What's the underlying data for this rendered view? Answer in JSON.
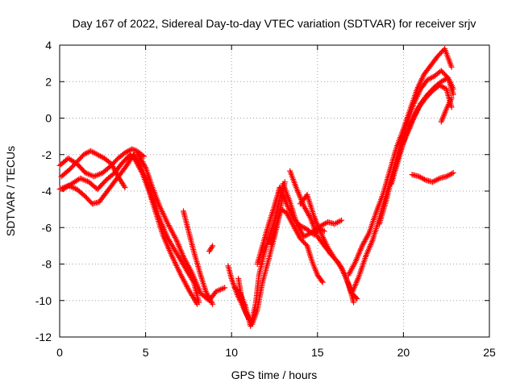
{
  "chart_data": {
    "type": "scatter",
    "title": "Day 167 of 2022, Sidereal Day-to-day VTEC variation (SDTVAR) for receiver srjv",
    "xlabel": "GPS time / hours",
    "ylabel": "SDTVAR / TECUs",
    "xlim": [
      0,
      25
    ],
    "ylim": [
      -12,
      4
    ],
    "xticks": [
      0,
      5,
      10,
      15,
      20,
      25
    ],
    "yticks": [
      -12,
      -10,
      -8,
      -6,
      -4,
      -2,
      0,
      2,
      4
    ],
    "xtick_labels": [
      "0",
      "5",
      "10",
      "15",
      "20",
      "25"
    ],
    "ytick_labels": [
      "-12",
      "-10",
      "-8",
      "-6",
      "-4",
      "-2",
      "0",
      "2",
      "4"
    ],
    "grid": true,
    "grid_style": "dotted",
    "marker": "+",
    "color": "#ff0000",
    "series": [
      {
        "values": [
          [
            0.1,
            -3.2
          ],
          [
            0.6,
            -2.8
          ],
          [
            1.0,
            -2.4
          ],
          [
            1.4,
            -2.0
          ],
          [
            1.8,
            -1.8
          ],
          [
            2.2,
            -2.0
          ],
          [
            2.6,
            -2.2
          ],
          [
            3.0,
            -2.5
          ],
          [
            3.4,
            -3.2
          ],
          [
            3.8,
            -3.8
          ]
        ]
      },
      {
        "values": [
          [
            0.0,
            -2.6
          ],
          [
            0.5,
            -2.2
          ],
          [
            1.0,
            -2.5
          ],
          [
            1.5,
            -3.0
          ],
          [
            2.0,
            -3.2
          ],
          [
            2.5,
            -3.0
          ],
          [
            3.0,
            -2.6
          ],
          [
            3.4,
            -2.2
          ],
          [
            3.8,
            -1.9
          ],
          [
            4.2,
            -1.7
          ],
          [
            4.5,
            -1.8
          ],
          [
            4.9,
            -2.1
          ]
        ]
      },
      {
        "values": [
          [
            0.0,
            -3.9
          ],
          [
            0.5,
            -3.7
          ],
          [
            1.0,
            -3.9
          ],
          [
            1.5,
            -4.3
          ],
          [
            1.9,
            -4.7
          ],
          [
            2.3,
            -4.6
          ],
          [
            2.7,
            -4.1
          ],
          [
            3.1,
            -3.6
          ],
          [
            3.5,
            -3.1
          ],
          [
            3.9,
            -2.6
          ],
          [
            4.3,
            -2.0
          ],
          [
            4.6,
            -2.4
          ],
          [
            5.0,
            -3.3
          ],
          [
            5.4,
            -4.4
          ],
          [
            5.8,
            -5.5
          ],
          [
            6.3,
            -6.6
          ],
          [
            6.8,
            -7.4
          ],
          [
            7.3,
            -8.2
          ],
          [
            7.8,
            -9.0
          ],
          [
            8.1,
            -10.1
          ]
        ]
      },
      {
        "values": [
          [
            0.2,
            -3.9
          ],
          [
            0.7,
            -3.6
          ],
          [
            1.2,
            -3.3
          ],
          [
            1.7,
            -3.5
          ],
          [
            2.2,
            -3.9
          ],
          [
            2.7,
            -3.4
          ],
          [
            3.2,
            -3.0
          ],
          [
            3.6,
            -2.5
          ],
          [
            4.1,
            -2.0
          ],
          [
            4.4,
            -2.3
          ],
          [
            4.8,
            -3.0
          ],
          [
            5.2,
            -4.0
          ],
          [
            5.6,
            -5.2
          ],
          [
            6.0,
            -6.4
          ],
          [
            6.5,
            -7.5
          ],
          [
            7.0,
            -8.5
          ],
          [
            7.5,
            -9.4
          ],
          [
            8.0,
            -10.2
          ]
        ]
      },
      {
        "values": [
          [
            4.5,
            -1.9
          ],
          [
            5.0,
            -2.7
          ],
          [
            5.4,
            -3.8
          ],
          [
            5.8,
            -4.8
          ],
          [
            6.3,
            -5.8
          ],
          [
            6.8,
            -6.7
          ],
          [
            7.2,
            -7.6
          ],
          [
            7.7,
            -8.5
          ],
          [
            8.2,
            -9.6
          ],
          [
            8.7,
            -10.0
          ],
          [
            9.1,
            -9.5
          ],
          [
            9.6,
            -9.3
          ]
        ]
      },
      {
        "values": [
          [
            7.2,
            -5.1
          ],
          [
            7.5,
            -6.2
          ],
          [
            7.8,
            -7.3
          ],
          [
            8.2,
            -8.6
          ],
          [
            8.5,
            -9.5
          ],
          [
            8.9,
            -10.2
          ]
        ]
      },
      {
        "values": [
          [
            8.7,
            -7.3
          ],
          [
            8.9,
            -7.0
          ]
        ]
      },
      {
        "values": [
          [
            9.8,
            -8.1
          ],
          [
            10.0,
            -8.8
          ],
          [
            10.3,
            -9.6
          ],
          [
            10.6,
            -10.2
          ],
          [
            10.9,
            -10.8
          ],
          [
            11.2,
            -11.3
          ],
          [
            11.5,
            -10.5
          ],
          [
            11.8,
            -9.0
          ],
          [
            12.2,
            -7.6
          ],
          [
            12.6,
            -6.1
          ],
          [
            12.9,
            -4.7
          ],
          [
            13.1,
            -3.5
          ]
        ]
      },
      {
        "values": [
          [
            10.2,
            -9.3
          ],
          [
            10.5,
            -9.6
          ],
          [
            10.8,
            -10.3
          ],
          [
            11.1,
            -11.4
          ],
          [
            11.4,
            -10.2
          ],
          [
            11.6,
            -8.6
          ],
          [
            11.9,
            -7.4
          ],
          [
            12.2,
            -6.5
          ],
          [
            12.5,
            -5.6
          ],
          [
            12.8,
            -4.5
          ],
          [
            13.0,
            -3.6
          ],
          [
            13.4,
            -4.6
          ],
          [
            13.8,
            -5.8
          ],
          [
            14.2,
            -6.5
          ],
          [
            14.6,
            -6.3
          ],
          [
            15.0,
            -6.0
          ],
          [
            15.4,
            -6.2
          ]
        ]
      },
      {
        "values": [
          [
            10.4,
            -8.8
          ],
          [
            10.6,
            -10.0
          ],
          [
            10.8,
            -10.6
          ],
          [
            11.0,
            -11.0
          ]
        ]
      },
      {
        "values": [
          [
            11.5,
            -8.0
          ],
          [
            11.8,
            -7.0
          ],
          [
            12.1,
            -6.0
          ],
          [
            12.5,
            -4.8
          ],
          [
            12.8,
            -3.8
          ],
          [
            13.2,
            -4.7
          ],
          [
            13.6,
            -5.5
          ],
          [
            14.0,
            -5.9
          ],
          [
            14.4,
            -6.1
          ],
          [
            14.8,
            -6.4
          ],
          [
            15.2,
            -5.9
          ],
          [
            15.6,
            -5.7
          ],
          [
            16.0,
            -5.8
          ],
          [
            16.4,
            -5.6
          ]
        ]
      },
      {
        "values": [
          [
            12.3,
            -6.9
          ],
          [
            12.6,
            -5.9
          ],
          [
            12.9,
            -5.0
          ],
          [
            13.2,
            -5.2
          ],
          [
            13.6,
            -5.9
          ],
          [
            14.0,
            -6.6
          ],
          [
            14.4,
            -7.0
          ],
          [
            14.7,
            -7.9
          ],
          [
            15.0,
            -8.6
          ],
          [
            15.3,
            -9.0
          ]
        ]
      },
      {
        "values": [
          [
            13.4,
            -2.9
          ],
          [
            13.8,
            -3.9
          ],
          [
            14.2,
            -4.8
          ],
          [
            14.6,
            -5.5
          ],
          [
            15.0,
            -6.5
          ],
          [
            15.4,
            -7.0
          ],
          [
            15.8,
            -7.5
          ],
          [
            16.2,
            -7.9
          ],
          [
            16.6,
            -8.6
          ],
          [
            17.0,
            -9.6
          ],
          [
            17.3,
            -9.9
          ]
        ]
      },
      {
        "values": [
          [
            14.0,
            -4.7
          ],
          [
            14.4,
            -4.2
          ],
          [
            14.8,
            -5.4
          ],
          [
            15.2,
            -6.3
          ],
          [
            15.6,
            -7.1
          ],
          [
            16.0,
            -7.7
          ],
          [
            16.4,
            -8.2
          ],
          [
            16.8,
            -9.1
          ],
          [
            17.1,
            -10.1
          ]
        ]
      },
      {
        "values": [
          [
            16.8,
            -8.6
          ],
          [
            17.2,
            -7.9
          ],
          [
            17.6,
            -7.0
          ],
          [
            18.0,
            -6.3
          ],
          [
            18.4,
            -5.2
          ],
          [
            18.8,
            -4.2
          ],
          [
            19.2,
            -2.9
          ],
          [
            19.6,
            -1.6
          ],
          [
            20.0,
            -0.6
          ],
          [
            20.4,
            0.5
          ],
          [
            20.8,
            1.6
          ],
          [
            21.2,
            2.4
          ],
          [
            21.6,
            2.9
          ],
          [
            22.0,
            3.4
          ],
          [
            22.4,
            3.8
          ],
          [
            22.8,
            2.8
          ]
        ]
      },
      {
        "values": [
          [
            17.0,
            -9.6
          ],
          [
            17.4,
            -8.7
          ],
          [
            17.8,
            -7.6
          ],
          [
            18.2,
            -6.7
          ],
          [
            18.6,
            -5.5
          ],
          [
            19.0,
            -4.2
          ],
          [
            19.4,
            -2.9
          ],
          [
            19.8,
            -1.5
          ],
          [
            20.2,
            -0.3
          ],
          [
            20.6,
            0.8
          ],
          [
            21.0,
            1.6
          ],
          [
            21.4,
            2.1
          ],
          [
            21.8,
            2.3
          ],
          [
            22.2,
            2.6
          ],
          [
            22.6,
            2.2
          ],
          [
            22.9,
            1.6
          ]
        ]
      },
      {
        "values": [
          [
            18.6,
            -5.8
          ],
          [
            19.0,
            -4.5
          ],
          [
            19.4,
            -3.0
          ],
          [
            19.8,
            -1.8
          ],
          [
            20.2,
            -0.9
          ],
          [
            20.6,
            0.0
          ],
          [
            21.0,
            0.8
          ],
          [
            21.4,
            1.3
          ],
          [
            21.8,
            1.7
          ],
          [
            22.2,
            2.0
          ],
          [
            22.6,
            2.2
          ],
          [
            22.9,
            1.3
          ]
        ]
      },
      {
        "values": [
          [
            19.3,
            -3.6
          ],
          [
            19.7,
            -2.3
          ],
          [
            20.1,
            -1.0
          ],
          [
            20.5,
            -0.1
          ],
          [
            20.9,
            0.6
          ],
          [
            21.3,
            1.1
          ],
          [
            21.7,
            1.5
          ],
          [
            22.1,
            1.8
          ],
          [
            22.5,
            1.6
          ],
          [
            22.8,
            0.6
          ]
        ]
      },
      {
        "values": [
          [
            20.5,
            -3.1
          ],
          [
            20.9,
            -3.2
          ],
          [
            21.3,
            -3.4
          ],
          [
            21.7,
            -3.5
          ],
          [
            22.1,
            -3.3
          ],
          [
            22.5,
            -3.2
          ],
          [
            22.9,
            -3.0
          ]
        ]
      },
      {
        "values": [
          [
            22.2,
            -0.2
          ],
          [
            22.5,
            0.5
          ],
          [
            22.8,
            1.1
          ]
        ]
      }
    ]
  }
}
